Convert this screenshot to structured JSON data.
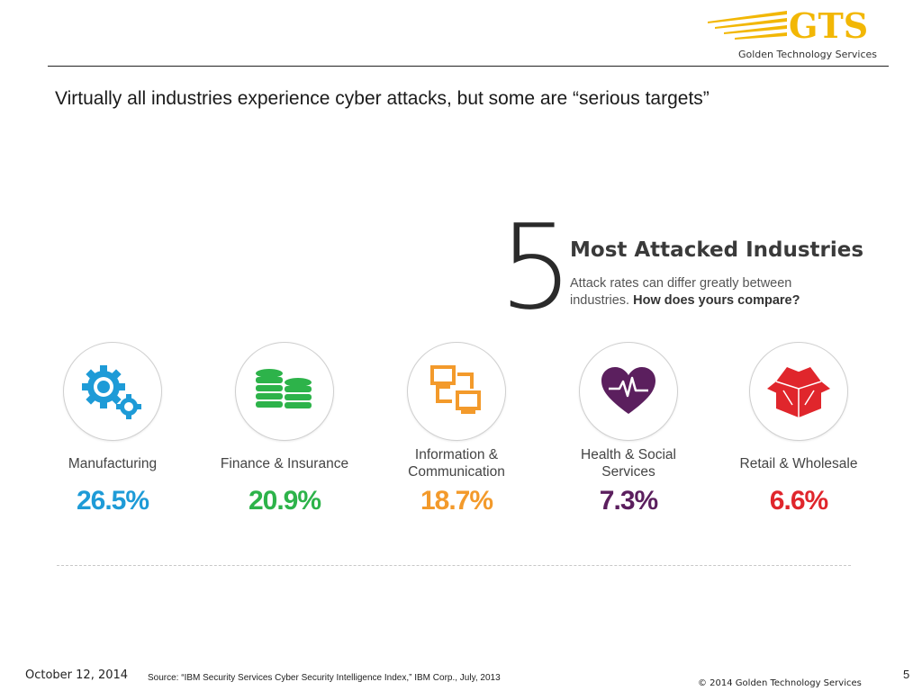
{
  "header": {
    "logo_text": "GTS",
    "logo_tagline": "Golden Technology Services",
    "logo_color": "#F2B705"
  },
  "slide": {
    "headline": "Virtually all industries experience cyber attacks, but some are “serious targets”"
  },
  "infographic": {
    "big_number": "5",
    "title": "Most Attacked Industries",
    "subtitle_line1": "Attack rates can differ greatly between",
    "subtitle_line2_plain": "industries. ",
    "subtitle_line2_bold": "How does yours compare?",
    "industries": [
      {
        "label_line1": "Manufacturing",
        "label_line2": "",
        "percent": "26.5%",
        "value": 26.5,
        "color": "#1E9BD7",
        "icon": "gears-icon"
      },
      {
        "label_line1": "Finance & Insurance",
        "label_line2": "",
        "percent": "20.9%",
        "value": 20.9,
        "color": "#2DB34A",
        "icon": "coin-stacks-icon"
      },
      {
        "label_line1": "Information &",
        "label_line2": "Communication",
        "percent": "18.7%",
        "value": 18.7,
        "color": "#F39A2B",
        "icon": "network-computers-icon"
      },
      {
        "label_line1": "Health & Social",
        "label_line2": "Services",
        "percent": "7.3%",
        "value": 7.3,
        "color": "#5B1F5E",
        "icon": "heart-pulse-icon"
      },
      {
        "label_line1": "Retail & Wholesale",
        "label_line2": "",
        "percent": "6.6%",
        "value": 6.6,
        "color": "#E0262C",
        "icon": "open-box-icon"
      }
    ]
  },
  "footer": {
    "date": "October 12, 2014",
    "source": "Source: “IBM Security Services Cyber Security Intelligence Index,” IBM Corp., July, 2013",
    "copyright": "© 2014 Golden Technology Services",
    "page_number": "5"
  }
}
